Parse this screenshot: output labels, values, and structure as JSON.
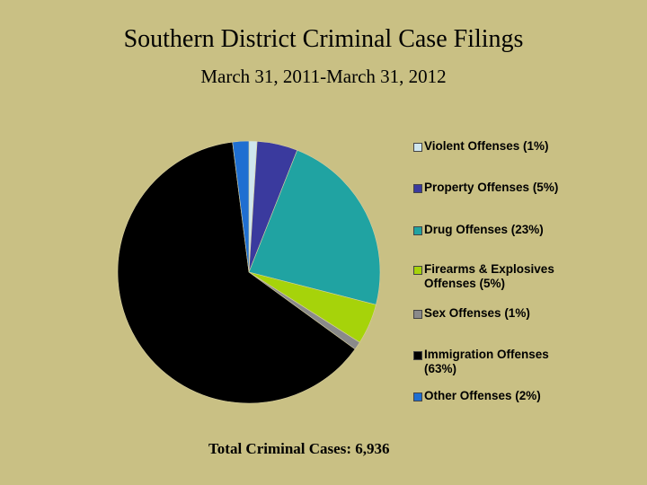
{
  "chart_data": {
    "type": "pie",
    "title": "Southern District Criminal Case Filings",
    "subtitle": "March 31, 2011-March 31, 2012",
    "annotation": "Total Criminal Cases: 6,936",
    "categories": [
      "Violent Offenses",
      "Property Offenses",
      "Drug Offenses",
      "Firearms & Explosives Offenses",
      "Sex Offenses",
      "Immigration Offenses",
      "Other Offenses"
    ],
    "values": [
      1,
      5,
      23,
      5,
      1,
      63,
      2
    ],
    "value_labels": [
      "(1%)",
      "(5%)",
      "(23%)",
      "(5%)",
      "(1%)",
      "(63%)",
      "(2%)"
    ],
    "colors": [
      "#cfe6ee",
      "#3a3a9e",
      "#20a3a2",
      "#a6d30a",
      "#8a8a8a",
      "#000000",
      "#1f6fd1"
    ],
    "legend": "right"
  }
}
